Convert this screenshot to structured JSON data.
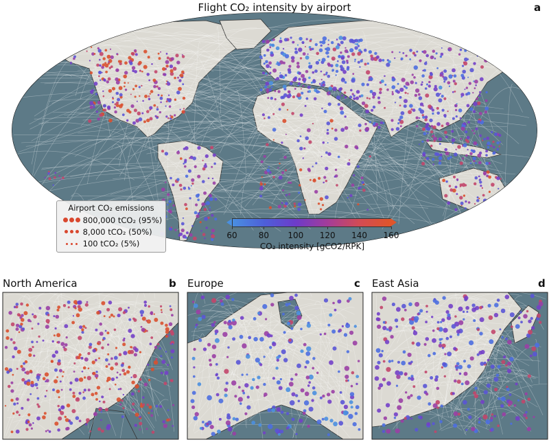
{
  "main": {
    "title": "Flight CO₂ intensity by airport",
    "letter": "a"
  },
  "legend": {
    "title": "Airport CO₂ emissions",
    "items": [
      {
        "label": "800,000 tCO₂ (95%)",
        "value": 800000
      },
      {
        "label": "8,000 tCO₂ (50%)",
        "value": 8000
      },
      {
        "label": "100 tCO₂ (5%)",
        "value": 100
      }
    ]
  },
  "colorbar": {
    "label": "CO₂ intensity [gCO2/RPK]",
    "ticks": [
      "60",
      "80",
      "100",
      "120",
      "140",
      "160"
    ],
    "min": 60,
    "max": 160,
    "color_low": "#4a8fe0",
    "color_high": "#e0552a"
  },
  "panels": [
    {
      "title": "North America",
      "letter": "b"
    },
    {
      "title": "Europe",
      "letter": "c"
    },
    {
      "title": "East Asia",
      "letter": "d"
    }
  ],
  "colors": {
    "ocean": "#5d7a87",
    "land": "#dcdad3",
    "route": "#ffffff"
  }
}
